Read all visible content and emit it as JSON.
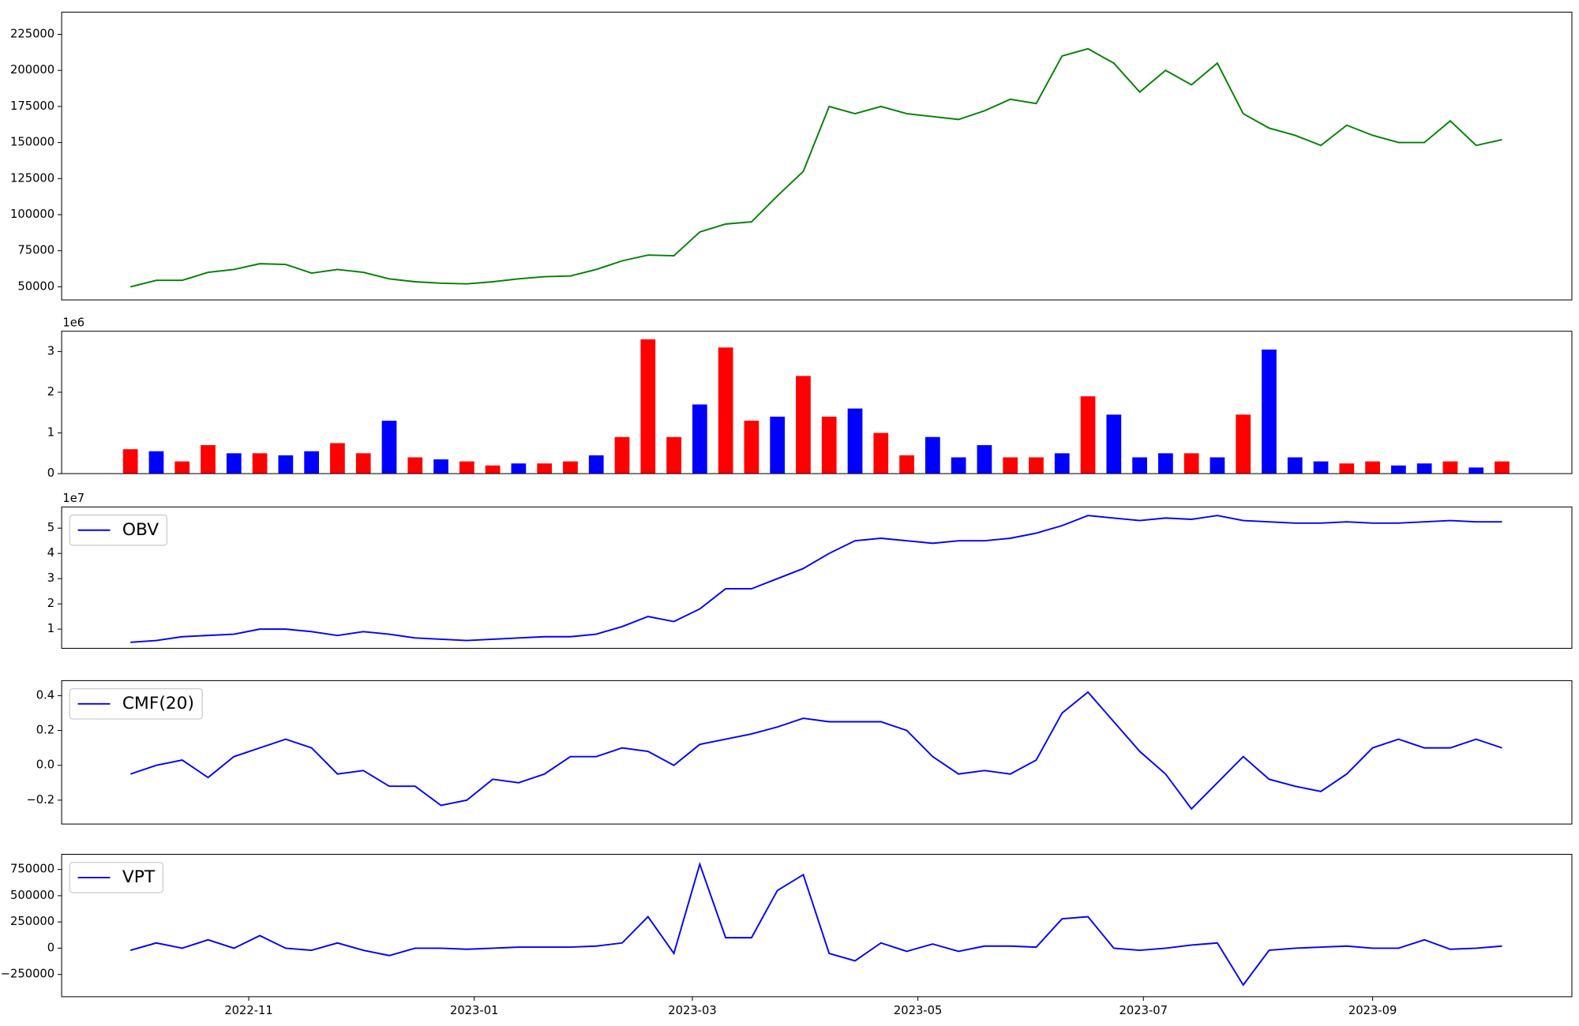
{
  "chart_data": [
    {
      "type": "line",
      "x": [
        0,
        7,
        14,
        21,
        28,
        35,
        42,
        49,
        56,
        63,
        70,
        77,
        84,
        91,
        98,
        105,
        112,
        119,
        126,
        133,
        140,
        147,
        154,
        161,
        168,
        175,
        182,
        189,
        196,
        203,
        210,
        217,
        224,
        231,
        238,
        245,
        252,
        259,
        266,
        273,
        280,
        287,
        294,
        301,
        308,
        315,
        322,
        329,
        336,
        343,
        350,
        357,
        364,
        371
      ],
      "series": [
        {
          "color": "green",
          "values": [
            50000,
            54500,
            54500,
            60000,
            62000,
            66000,
            65500,
            59500,
            62000,
            60000,
            55500,
            53500,
            52500,
            52000,
            53500,
            55500,
            57000,
            57500,
            62000,
            68000,
            72000,
            71500,
            88000,
            93500,
            95000,
            113000,
            130000,
            175000,
            170000,
            175000,
            170000,
            168000,
            166000,
            172000,
            180000,
            177000,
            210000,
            215000,
            205000,
            185000,
            200000,
            190000,
            205000,
            170000,
            160000,
            155000,
            148000,
            162000,
            155000,
            150000,
            150000,
            165000,
            148000,
            152000
          ]
        }
      ],
      "xlim": [
        -18.6,
        389.9
      ],
      "ylim": [
        40900,
        240400
      ],
      "yticks": [
        50000,
        75000,
        100000,
        125000,
        150000,
        175000,
        200000,
        225000
      ]
    },
    {
      "type": "bar",
      "x": [
        0,
        7,
        14,
        21,
        28,
        35,
        42,
        49,
        56,
        63,
        70,
        77,
        84,
        91,
        98,
        105,
        112,
        119,
        126,
        133,
        140,
        147,
        154,
        161,
        168,
        175,
        182,
        189,
        196,
        203,
        210,
        217,
        224,
        231,
        238,
        245,
        252,
        259,
        266,
        273,
        280,
        287,
        294,
        301,
        308,
        315,
        322,
        329,
        336,
        343,
        350,
        357,
        364,
        371
      ],
      "values": [
        600000,
        550000,
        300000,
        700000,
        500000,
        500000,
        450000,
        550000,
        750000,
        500000,
        1300000,
        400000,
        350000,
        300000,
        200000,
        250000,
        250000,
        300000,
        450000,
        900000,
        3300000,
        900000,
        1700000,
        3100000,
        1300000,
        1400000,
        2400000,
        1400000,
        1600000,
        1000000,
        450000,
        900000,
        400000,
        700000,
        400000,
        400000,
        500000,
        1900000,
        1450000,
        400000,
        500000,
        500000,
        400000,
        1450000,
        3050000,
        400000,
        300000,
        250000,
        300000,
        200000,
        250000,
        300000,
        150000,
        300000
      ],
      "colors": [
        "red",
        "blue",
        "red",
        "red",
        "blue",
        "red",
        "blue",
        "blue",
        "red",
        "red",
        "blue",
        "red",
        "blue",
        "red",
        "red",
        "blue",
        "red",
        "red",
        "blue",
        "red",
        "red",
        "red",
        "blue",
        "red",
        "red",
        "blue",
        "red",
        "red",
        "blue",
        "red",
        "red",
        "blue",
        "blue",
        "blue",
        "red",
        "red",
        "blue",
        "red",
        "blue",
        "blue",
        "blue",
        "red",
        "blue",
        "red",
        "blue",
        "blue",
        "blue",
        "red",
        "red",
        "blue",
        "blue",
        "red",
        "blue",
        "red"
      ],
      "xlim": [
        -18.6,
        389.9
      ],
      "ylim": [
        0,
        3500000
      ],
      "yticks": [
        0,
        {
          "value": 1000000,
          "label": "1"
        },
        {
          "value": 2000000,
          "label": "2"
        },
        {
          "value": 3000000,
          "label": "3"
        }
      ],
      "y_offset_label": "1e6"
    },
    {
      "type": "line",
      "x": [
        0,
        7,
        14,
        21,
        28,
        35,
        42,
        49,
        56,
        63,
        70,
        77,
        84,
        91,
        98,
        105,
        112,
        119,
        126,
        133,
        140,
        147,
        154,
        161,
        168,
        175,
        182,
        189,
        196,
        203,
        210,
        217,
        224,
        231,
        238,
        245,
        252,
        259,
        266,
        273,
        280,
        287,
        294,
        301,
        308,
        315,
        322,
        329,
        336,
        343,
        350,
        357,
        364,
        371
      ],
      "series": [
        {
          "name": "OBV",
          "color": "blue",
          "values": [
            4800000,
            5500000,
            7000000,
            7500000,
            8000000,
            10000000,
            10000000,
            9000000,
            7500000,
            9000000,
            8000000,
            6500000,
            6000000,
            5500000,
            6000000,
            6500000,
            7000000,
            7000000,
            8000000,
            11000000,
            15000000,
            13000000,
            18000000,
            26000000,
            26000000,
            30000000,
            34000000,
            40000000,
            45000000,
            46000000,
            45000000,
            44000000,
            45000000,
            45000000,
            46000000,
            48000000,
            51000000,
            55000000,
            54000000,
            53000000,
            54000000,
            53500000,
            55000000,
            53000000,
            52500000,
            52000000,
            52000000,
            52500000,
            52000000,
            52000000,
            52500000,
            53000000,
            52500000,
            52500000
          ]
        }
      ],
      "xlim": [
        -18.6,
        389.9
      ],
      "ylim": [
        2400000,
        58400000
      ],
      "yticks": [
        {
          "value": 10000000,
          "label": "1"
        },
        {
          "value": 20000000,
          "label": "2"
        },
        {
          "value": 30000000,
          "label": "3"
        },
        {
          "value": 40000000,
          "label": "4"
        },
        {
          "value": 50000000,
          "label": "5"
        }
      ],
      "y_offset_label": "1e7",
      "legend": "upper left"
    },
    {
      "type": "line",
      "x": [
        0,
        7,
        14,
        21,
        28,
        35,
        42,
        49,
        56,
        63,
        70,
        77,
        84,
        91,
        98,
        105,
        112,
        119,
        126,
        133,
        140,
        147,
        154,
        161,
        168,
        175,
        182,
        189,
        196,
        203,
        210,
        217,
        224,
        231,
        238,
        245,
        252,
        259,
        266,
        273,
        280,
        287,
        294,
        301,
        308,
        315,
        322,
        329,
        336,
        343,
        350,
        357,
        364,
        371
      ],
      "series": [
        {
          "name": "CMF(20)",
          "color": "blue",
          "values": [
            -0.05,
            0.0,
            0.03,
            -0.07,
            0.05,
            0.1,
            0.15,
            0.1,
            -0.05,
            -0.03,
            -0.12,
            -0.12,
            -0.23,
            -0.2,
            -0.08,
            -0.1,
            -0.05,
            0.05,
            0.05,
            0.1,
            0.08,
            0.0,
            0.12,
            0.15,
            0.18,
            0.22,
            0.27,
            0.25,
            0.25,
            0.25,
            0.2,
            0.05,
            -0.05,
            -0.03,
            -0.05,
            0.03,
            0.3,
            0.42,
            0.25,
            0.08,
            -0.05,
            -0.25,
            -0.1,
            0.05,
            -0.08,
            -0.12,
            -0.15,
            -0.05,
            0.1,
            0.15,
            0.1,
            0.1,
            0.15,
            0.1
          ]
        }
      ],
      "xlim": [
        -18.6,
        389.9
      ],
      "ylim": [
        -0.337,
        0.486
      ],
      "yticks": [
        {
          "value": -0.2,
          "label": "−0.2"
        },
        {
          "value": 0,
          "label": "0.0"
        },
        0.2,
        0.4
      ],
      "legend": "upper left"
    },
    {
      "type": "line",
      "x": [
        0,
        7,
        14,
        21,
        28,
        35,
        42,
        49,
        56,
        63,
        70,
        77,
        84,
        91,
        98,
        105,
        112,
        119,
        126,
        133,
        140,
        147,
        154,
        161,
        168,
        175,
        182,
        189,
        196,
        203,
        210,
        217,
        224,
        231,
        238,
        245,
        252,
        259,
        266,
        273,
        280,
        287,
        294,
        301,
        308,
        315,
        322,
        329,
        336,
        343,
        350,
        357,
        364,
        371
      ],
      "series": [
        {
          "name": "VPT",
          "color": "blue",
          "values": [
            -20000,
            50000,
            0,
            80000,
            0,
            120000,
            0,
            -20000,
            50000,
            -20000,
            -70000,
            0,
            0,
            -10000,
            0,
            10000,
            10000,
            10000,
            20000,
            50000,
            300000,
            -50000,
            800000,
            100000,
            100000,
            550000,
            700000,
            -50000,
            -120000,
            50000,
            -30000,
            40000,
            -30000,
            20000,
            20000,
            10000,
            280000,
            300000,
            0,
            -20000,
            0,
            30000,
            50000,
            -350000,
            -20000,
            0,
            10000,
            20000,
            0,
            0,
            80000,
            -10000,
            0,
            20000
          ]
        }
      ],
      "xlim": [
        -18.6,
        389.9
      ],
      "ylim": [
        -462000,
        894000
      ],
      "yticks": [
        {
          "value": -250000,
          "label": "−250000"
        },
        0,
        250000,
        500000,
        750000
      ],
      "xticks": [
        {
          "value": 32,
          "label": "2022-11"
        },
        {
          "value": 93,
          "label": "2023-01"
        },
        {
          "value": 152,
          "label": "2023-03"
        },
        {
          "value": 213,
          "label": "2023-05"
        },
        {
          "value": 274,
          "label": "2023-07"
        },
        {
          "value": 336,
          "label": "2023-09"
        }
      ],
      "legend": "upper left"
    }
  ]
}
